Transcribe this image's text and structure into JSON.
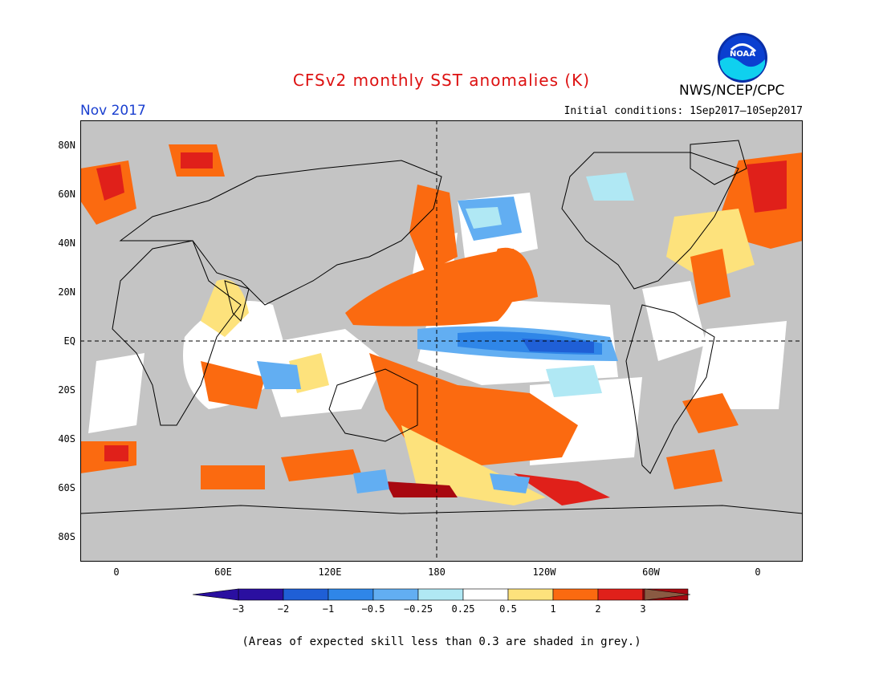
{
  "title": "CFSv2 monthly SST anomalies (K)",
  "month": "Nov 2017",
  "agency": "NWS/NCEP/CPC",
  "initial_conditions": "Initial conditions: 1Sep2017–10Sep2017",
  "logo_text": "NOAA",
  "lat_labels": [
    "80N",
    "60N",
    "40N",
    "20N",
    "EQ",
    "20S",
    "40S",
    "60S",
    "80S"
  ],
  "lon_labels": [
    "0",
    "60E",
    "120E",
    "180",
    "120W",
    "60W",
    "0"
  ],
  "colorbar": {
    "labels": [
      "−3",
      "−2",
      "−1",
      "−0.5",
      "−0.25",
      "0.25",
      "0.5",
      "1",
      "2",
      "3"
    ],
    "colors": [
      "#2a0fa0",
      "#1f5fd6",
      "#2f86e8",
      "#62aef2",
      "#b0e8f4",
      "#ffffff",
      "#fde27c",
      "#fb6a10",
      "#e0201a",
      "#a80810"
    ],
    "low_extend": "#2a0fa0",
    "high_extend": "#8a5a42"
  },
  "colors": {
    "land": "#c8c8c8",
    "grey_skill": "#c0c0c0",
    "title": "#dd1111",
    "month": "#1a3fd0"
  },
  "footnote": "(Areas of expected skill less than 0.3 are shaded in grey.)"
}
